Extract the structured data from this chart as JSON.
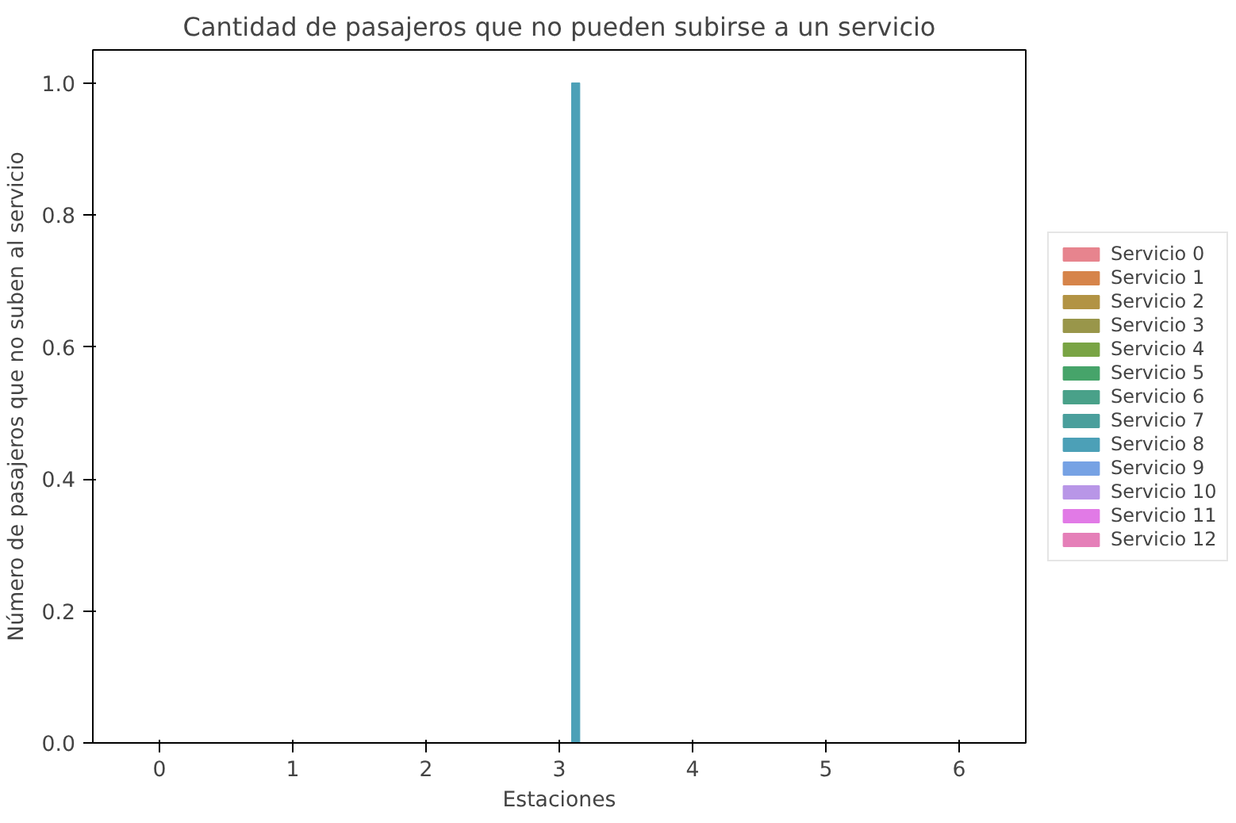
{
  "chart_data": {
    "type": "bar",
    "title": "Cantidad de pasajeros que no pueden subirse a un servicio",
    "xlabel": "Estaciones",
    "ylabel": "Número de pasajeros que no suben al servicio",
    "categories": [
      "0",
      "1",
      "2",
      "3",
      "4",
      "5",
      "6"
    ],
    "series": [
      {
        "name": "Servicio 0",
        "color": "#e7848e",
        "values": [
          0,
          0,
          0,
          0,
          0,
          0,
          0
        ]
      },
      {
        "name": "Servicio 1",
        "color": "#d6844a",
        "values": [
          0,
          0,
          0,
          0,
          0,
          0,
          0
        ]
      },
      {
        "name": "Servicio 2",
        "color": "#b29344",
        "values": [
          0,
          0,
          0,
          0,
          0,
          0,
          0
        ]
      },
      {
        "name": "Servicio 3",
        "color": "#99964a",
        "values": [
          0,
          0,
          0,
          0,
          0,
          0,
          0
        ]
      },
      {
        "name": "Servicio 4",
        "color": "#79a444",
        "values": [
          0,
          0,
          0,
          0,
          0,
          0,
          0
        ]
      },
      {
        "name": "Servicio 5",
        "color": "#46a46a",
        "values": [
          0,
          0,
          0,
          0,
          0,
          0,
          0
        ]
      },
      {
        "name": "Servicio 6",
        "color": "#49a189",
        "values": [
          0,
          0,
          0,
          0,
          0,
          0,
          0
        ]
      },
      {
        "name": "Servicio 7",
        "color": "#4a9f9c",
        "values": [
          0,
          0,
          0,
          0,
          0,
          0,
          0
        ]
      },
      {
        "name": "Servicio 8",
        "color": "#4ca0b7",
        "values": [
          0,
          0,
          0,
          1,
          0,
          0,
          0
        ]
      },
      {
        "name": "Servicio 9",
        "color": "#76a2e4",
        "values": [
          0,
          0,
          0,
          0,
          0,
          0,
          0
        ]
      },
      {
        "name": "Servicio 10",
        "color": "#b896e7",
        "values": [
          0,
          0,
          0,
          0,
          0,
          0,
          0
        ]
      },
      {
        "name": "Servicio 11",
        "color": "#e17ae6",
        "values": [
          0,
          0,
          0,
          0,
          0,
          0,
          0
        ]
      },
      {
        "name": "Servicio 12",
        "color": "#e57fb8",
        "values": [
          0,
          0,
          0,
          0,
          0,
          0,
          0
        ]
      }
    ],
    "ylim": [
      0,
      1.05
    ],
    "yticks": [
      {
        "value": 0,
        "label": "0.0"
      },
      {
        "value": 0.2,
        "label": "0.2"
      },
      {
        "value": 0.4,
        "label": "0.4"
      },
      {
        "value": 0.6,
        "label": "0.6"
      },
      {
        "value": 0.8,
        "label": "0.8"
      },
      {
        "value": 1.0,
        "label": "1.0"
      }
    ],
    "legend": "right",
    "grid": false
  }
}
